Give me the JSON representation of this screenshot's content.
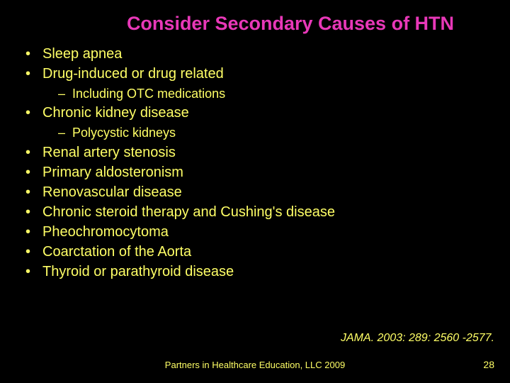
{
  "colors": {
    "background": "#000000",
    "title": "#e838b8",
    "body": "#ffff66"
  },
  "typography": {
    "title_fontsize": 27,
    "body_fontsize": 20,
    "sub_fontsize": 18,
    "footer_fontsize": 13,
    "citation_fontsize": 16
  },
  "title": "Consider Secondary Causes of HTN",
  "bullets": [
    {
      "text": "Sleep apnea",
      "sub": []
    },
    {
      "text": "Drug-induced or drug related",
      "sub": [
        "Including OTC medications"
      ]
    },
    {
      "text": "Chronic kidney disease",
      "sub": [
        "Polycystic kidneys"
      ]
    },
    {
      "text": "Renal artery stenosis",
      "sub": []
    },
    {
      "text": "Primary aldosteronism",
      "sub": []
    },
    {
      "text": "Renovascular disease",
      "sub": []
    },
    {
      "text": "Chronic steroid therapy and Cushing's disease",
      "sub": []
    },
    {
      "text": "Pheochromocytoma",
      "sub": []
    },
    {
      "text": "Coarctation of the Aorta",
      "sub": []
    },
    {
      "text": "Thyroid or parathyroid disease",
      "sub": []
    }
  ],
  "citation": "JAMA. 2003: 289: 2560 -2577.",
  "footer": "Partners in Healthcare Education, LLC 2009",
  "page_number": "28"
}
